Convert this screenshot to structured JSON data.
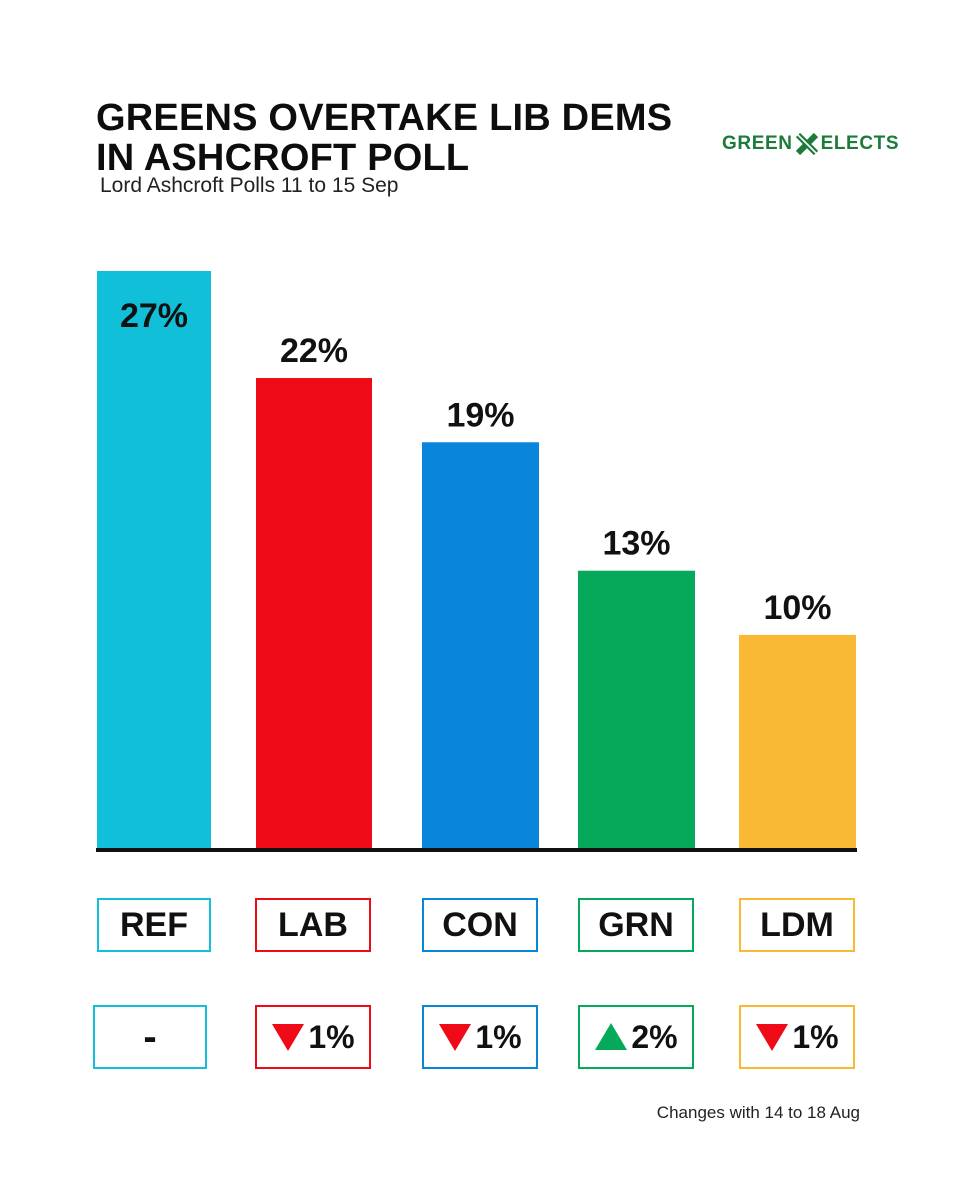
{
  "header": {
    "title_line1": "GREENS OVERTAKE LIB DEMS",
    "title_line2": "IN ASHCROFT POLL",
    "subtitle": "Lord Ashcroft Polls 11 to 15 Sep",
    "logo_left": "GREEN",
    "logo_right": "ELECTS",
    "logo_icon": "x-mark-icon"
  },
  "chart_data": {
    "type": "bar",
    "title": "GREENS OVERTAKE LIB DEMS IN ASHCROFT POLL",
    "subtitle": "Lord Ashcroft Polls 11 to 15 Sep",
    "categories": [
      "REF",
      "LAB",
      "CON",
      "GRN",
      "LDM"
    ],
    "values": [
      27,
      22,
      19,
      13,
      10
    ],
    "value_labels": [
      "27%",
      "22%",
      "19%",
      "13%",
      "10%"
    ],
    "colors": [
      "#12bfd9",
      "#ee0a17",
      "#0a85dc",
      "#06a85a",
      "#f9b934"
    ],
    "ylim": [
      0,
      27
    ],
    "grid": false,
    "xlabel": "",
    "ylabel": ""
  },
  "parties": [
    {
      "code": "REF",
      "change": "-",
      "direction": "none",
      "color": "#12bfd9"
    },
    {
      "code": "LAB",
      "change": "1%",
      "direction": "down",
      "color": "#ee0a17"
    },
    {
      "code": "CON",
      "change": "1%",
      "direction": "down",
      "color": "#0a85dc"
    },
    {
      "code": "GRN",
      "change": "2%",
      "direction": "up",
      "color": "#06a85a"
    },
    {
      "code": "LDM",
      "change": "1%",
      "direction": "down",
      "color": "#f9b934"
    }
  ],
  "arrow_colors": {
    "down": "#ee0a17",
    "up": "#06a85a"
  },
  "footnote": "Changes with 14 to 18 Aug"
}
